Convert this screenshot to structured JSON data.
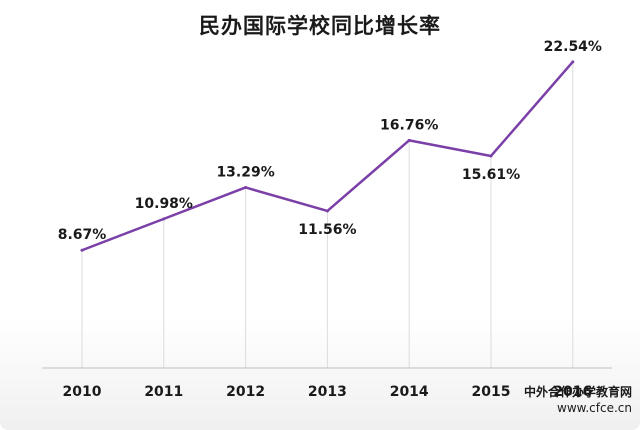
{
  "chart_data": {
    "type": "line",
    "title": "民办国际学校同比增长率",
    "xlabel": "",
    "ylabel": "",
    "categories": [
      "2010",
      "2011",
      "2012",
      "2013",
      "2014",
      "2015",
      "2016"
    ],
    "series": [
      {
        "values": [
          8.67,
          10.98,
          13.29,
          11.56,
          16.76,
          15.61,
          22.54
        ],
        "labels": [
          "8.67%",
          "10.98%",
          "13.29%",
          "11.56%",
          "16.76%",
          "15.61%",
          "22.54%"
        ]
      }
    ],
    "ylim": [
      0,
      24
    ],
    "grid": false,
    "colors": {
      "line": "#7b3fa8",
      "drop_line": "#dcdcdc",
      "axis": "#bfbfbf"
    }
  },
  "watermark": {
    "name": "中外合作办学教育网",
    "url": "www.cfce.cn"
  }
}
